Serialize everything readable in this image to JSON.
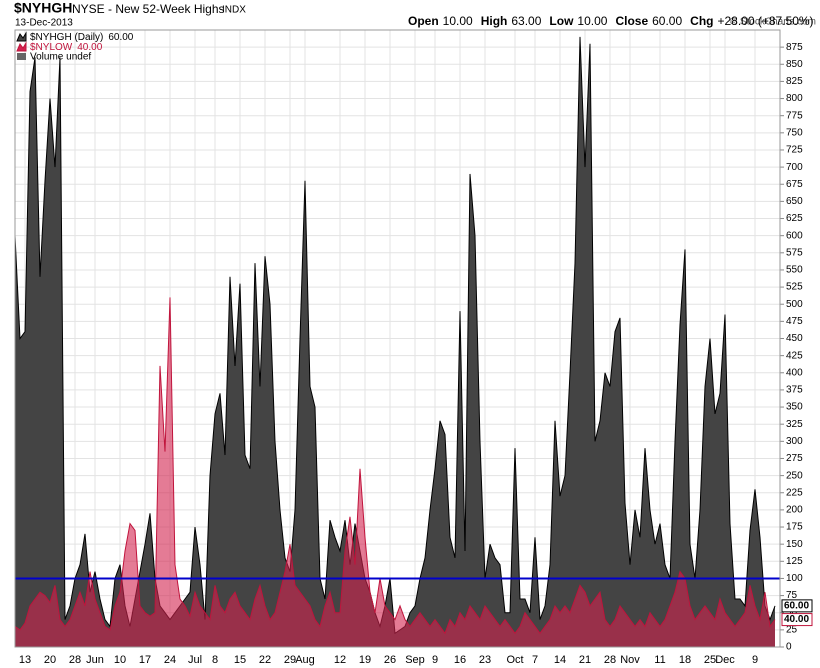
{
  "chart_data": {
    "type": "area",
    "symbol": "$NYHGH",
    "title": "NYSE - New 52-Week Highs",
    "exchange": "INDX",
    "date": "13-Dec-2013",
    "quote": [
      {
        "label": "Open",
        "value": "10.00"
      },
      {
        "label": "High",
        "value": "63.00"
      },
      {
        "label": "Low",
        "value": "10.00"
      },
      {
        "label": "Close",
        "value": "60.00"
      },
      {
        "label": "Chg",
        "value": "+28.00 (+87.50%)"
      }
    ],
    "credit": "© StockCharts.com",
    "volume_legend": "Volume undef",
    "categories": [
      null,
      null,
      "13",
      null,
      null,
      null,
      null,
      "20",
      null,
      null,
      null,
      null,
      "28",
      null,
      null,
      null,
      "Jun",
      null,
      null,
      null,
      null,
      "10",
      null,
      null,
      null,
      null,
      "17",
      null,
      null,
      null,
      null,
      "24",
      null,
      null,
      null,
      null,
      "Jul",
      null,
      null,
      null,
      "8",
      null,
      null,
      null,
      null,
      "15",
      null,
      null,
      null,
      null,
      "22",
      null,
      null,
      null,
      null,
      "29",
      null,
      null,
      "Aug",
      null,
      null,
      null,
      null,
      null,
      null,
      "12",
      null,
      null,
      null,
      null,
      "19",
      null,
      null,
      null,
      null,
      "26",
      null,
      null,
      null,
      null,
      "Sep",
      null,
      null,
      null,
      "9",
      null,
      null,
      null,
      null,
      "16",
      null,
      null,
      null,
      null,
      "23",
      null,
      null,
      null,
      null,
      null,
      "Oct",
      null,
      null,
      null,
      "7",
      null,
      null,
      null,
      null,
      "14",
      null,
      null,
      null,
      null,
      "21",
      null,
      null,
      null,
      null,
      "28",
      null,
      null,
      null,
      "Nov",
      null,
      null,
      null,
      null,
      null,
      "11",
      null,
      null,
      null,
      null,
      "18",
      null,
      null,
      null,
      null,
      "25",
      null,
      null,
      "Dec",
      null,
      null,
      null,
      null,
      null,
      "9",
      null,
      null,
      null,
      null
    ],
    "series": [
      {
        "name": "$NYHGH (Daily)",
        "legend_value": "60.00",
        "last_label": "60.00",
        "color": "#444444",
        "stroke": "#000000",
        "values": [
          600,
          450,
          460,
          810,
          860,
          540,
          680,
          800,
          700,
          860,
          40,
          60,
          100,
          120,
          165,
          80,
          110,
          70,
          40,
          30,
          100,
          120,
          60,
          30,
          70,
          110,
          150,
          195,
          100,
          60,
          50,
          40,
          50,
          60,
          70,
          80,
          175,
          120,
          40,
          250,
          340,
          370,
          280,
          540,
          410,
          530,
          280,
          260,
          560,
          380,
          570,
          500,
          300,
          200,
          130,
          110,
          200,
          450,
          680,
          380,
          350,
          100,
          70,
          185,
          160,
          140,
          185,
          120,
          180,
          140,
          100,
          80,
          50,
          30,
          60,
          100,
          20,
          25,
          30,
          50,
          60,
          100,
          130,
          200,
          260,
          330,
          310,
          160,
          130,
          490,
          140,
          690,
          600,
          300,
          100,
          150,
          130,
          120,
          50,
          50,
          290,
          70,
          70,
          50,
          160,
          40,
          60,
          120,
          330,
          220,
          250,
          400,
          560,
          890,
          700,
          880,
          300,
          330,
          400,
          380,
          460,
          480,
          210,
          120,
          200,
          160,
          290,
          200,
          150,
          180,
          120,
          100,
          300,
          470,
          580,
          150,
          100,
          200,
          380,
          450,
          340,
          370,
          485,
          180,
          70,
          70,
          60,
          170,
          230,
          160,
          60,
          40,
          60
        ]
      },
      {
        "name": "$NYLOW",
        "legend_value": "40.00",
        "last_label": "40.00",
        "color": "#d2234f",
        "stroke": "#c0143c",
        "values": [
          30,
          25,
          35,
          60,
          70,
          80,
          75,
          65,
          90,
          40,
          30,
          40,
          60,
          80,
          60,
          110,
          70,
          50,
          30,
          25,
          60,
          80,
          140,
          180,
          170,
          60,
          50,
          45,
          50,
          410,
          285,
          510,
          120,
          70,
          60,
          45,
          80,
          60,
          50,
          40,
          90,
          60,
          50,
          70,
          80,
          60,
          50,
          40,
          70,
          90,
          60,
          40,
          50,
          80,
          110,
          150,
          90,
          80,
          70,
          60,
          40,
          30,
          60,
          80,
          50,
          50,
          140,
          190,
          120,
          260,
          160,
          80,
          50,
          100,
          60,
          50,
          40,
          60,
          40,
          30,
          40,
          50,
          40,
          30,
          40,
          30,
          20,
          40,
          30,
          50,
          40,
          60,
          50,
          40,
          60,
          50,
          40,
          30,
          40,
          30,
          20,
          30,
          50,
          40,
          30,
          20,
          30,
          40,
          60,
          50,
          60,
          50,
          70,
          90,
          80,
          60,
          70,
          80,
          40,
          30,
          40,
          60,
          50,
          40,
          30,
          40,
          30,
          50,
          40,
          30,
          40,
          60,
          80,
          110,
          100,
          60,
          40,
          50,
          60,
          50,
          40,
          70,
          50,
          40,
          30,
          40,
          50,
          90,
          60,
          40,
          80,
          30,
          40
        ]
      }
    ],
    "hline": {
      "value": 100,
      "color": "#0000cc"
    },
    "ylim": [
      0,
      900
    ],
    "yticks": [
      0,
      25,
      50,
      75,
      100,
      125,
      150,
      175,
      200,
      225,
      250,
      275,
      300,
      325,
      350,
      375,
      400,
      425,
      450,
      475,
      500,
      525,
      550,
      575,
      600,
      625,
      650,
      675,
      700,
      725,
      750,
      775,
      800,
      825,
      850,
      875
    ],
    "grid": true
  }
}
